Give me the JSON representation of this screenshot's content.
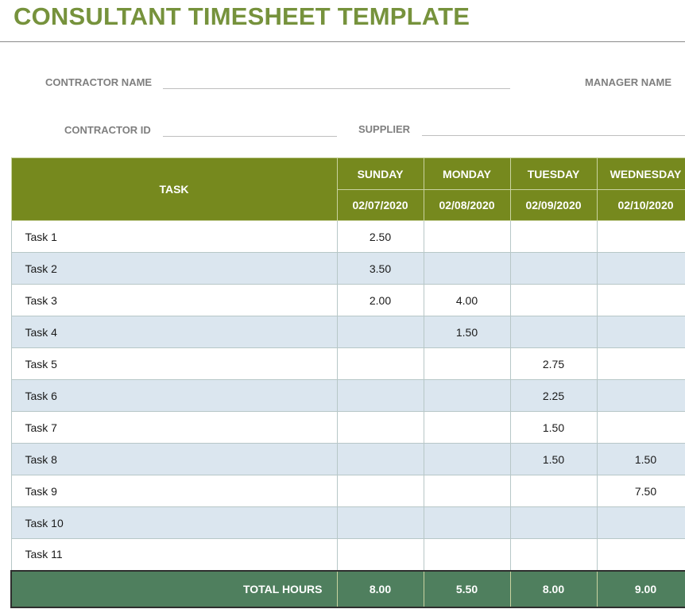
{
  "title": "CONSULTANT TIMESHEET TEMPLATE",
  "fields": {
    "contractor_name": {
      "label": "CONTRACTOR NAME",
      "value": ""
    },
    "manager_name": {
      "label": "MANAGER NAME",
      "value": ""
    },
    "contractor_id": {
      "label": "CONTRACTOR ID",
      "value": ""
    },
    "supplier": {
      "label": "SUPPLIER",
      "value": ""
    }
  },
  "table": {
    "task_header": "TASK",
    "days": [
      {
        "name": "SUNDAY",
        "date": "02/07/2020"
      },
      {
        "name": "MONDAY",
        "date": "02/08/2020"
      },
      {
        "name": "TUESDAY",
        "date": "02/09/2020"
      },
      {
        "name": "WEDNESDAY",
        "date": "02/10/2020"
      }
    ],
    "rows": [
      {
        "task": "Task 1",
        "hours": [
          "2.50",
          "",
          "",
          ""
        ]
      },
      {
        "task": "Task 2",
        "hours": [
          "3.50",
          "",
          "",
          ""
        ]
      },
      {
        "task": "Task 3",
        "hours": [
          "2.00",
          "4.00",
          "",
          ""
        ]
      },
      {
        "task": "Task 4",
        "hours": [
          "",
          "1.50",
          "",
          ""
        ]
      },
      {
        "task": "Task 5",
        "hours": [
          "",
          "",
          "2.75",
          ""
        ]
      },
      {
        "task": "Task 6",
        "hours": [
          "",
          "",
          "2.25",
          ""
        ]
      },
      {
        "task": "Task 7",
        "hours": [
          "",
          "",
          "1.50",
          ""
        ]
      },
      {
        "task": "Task 8",
        "hours": [
          "",
          "",
          "1.50",
          "1.50"
        ]
      },
      {
        "task": "Task 9",
        "hours": [
          "",
          "",
          "",
          "7.50"
        ]
      },
      {
        "task": "Task 10",
        "hours": [
          "",
          "",
          "",
          ""
        ]
      },
      {
        "task": "Task 11",
        "hours": [
          "",
          "",
          "",
          ""
        ]
      }
    ],
    "total_label": "TOTAL HOURS",
    "totals": [
      "8.00",
      "5.50",
      "8.00",
      "9.00"
    ]
  },
  "colors": {
    "title": "#76923c",
    "header_bg": "#76891e",
    "stripe_bg": "#dbe6ef",
    "total_bg": "#4f7f5e"
  }
}
